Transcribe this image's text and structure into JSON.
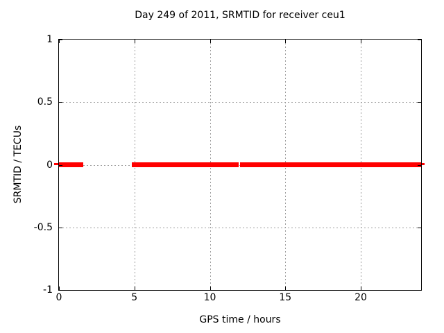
{
  "chart_data": {
    "type": "line",
    "title": "Day 249 of 2011, SRMTID for receiver ceu1",
    "xlabel": "GPS time / hours",
    "ylabel": "SRMTID / TECUs",
    "xlim": [
      0,
      24
    ],
    "ylim": [
      -1,
      1
    ],
    "x_ticks": [
      0,
      5,
      10,
      15,
      20
    ],
    "x_tick_labels": [
      "0",
      "5",
      "10",
      "15",
      "20"
    ],
    "y_ticks": [
      1,
      0.5,
      0,
      -0.5,
      -1
    ],
    "y_tick_labels": [
      "1",
      "0.5",
      "0",
      "-0.5",
      "-1"
    ],
    "grid": true,
    "grid_color": "#9c9c9c",
    "border_color": "#000000",
    "background_color": "#ffffff",
    "legend": "none",
    "series": [
      {
        "name": "SRMTID",
        "color": "#ff0000",
        "y_value": 0,
        "segments_hours": [
          [
            0,
            1.6
          ],
          [
            4.85,
            11.9
          ],
          [
            12.0,
            24
          ]
        ]
      }
    ]
  }
}
